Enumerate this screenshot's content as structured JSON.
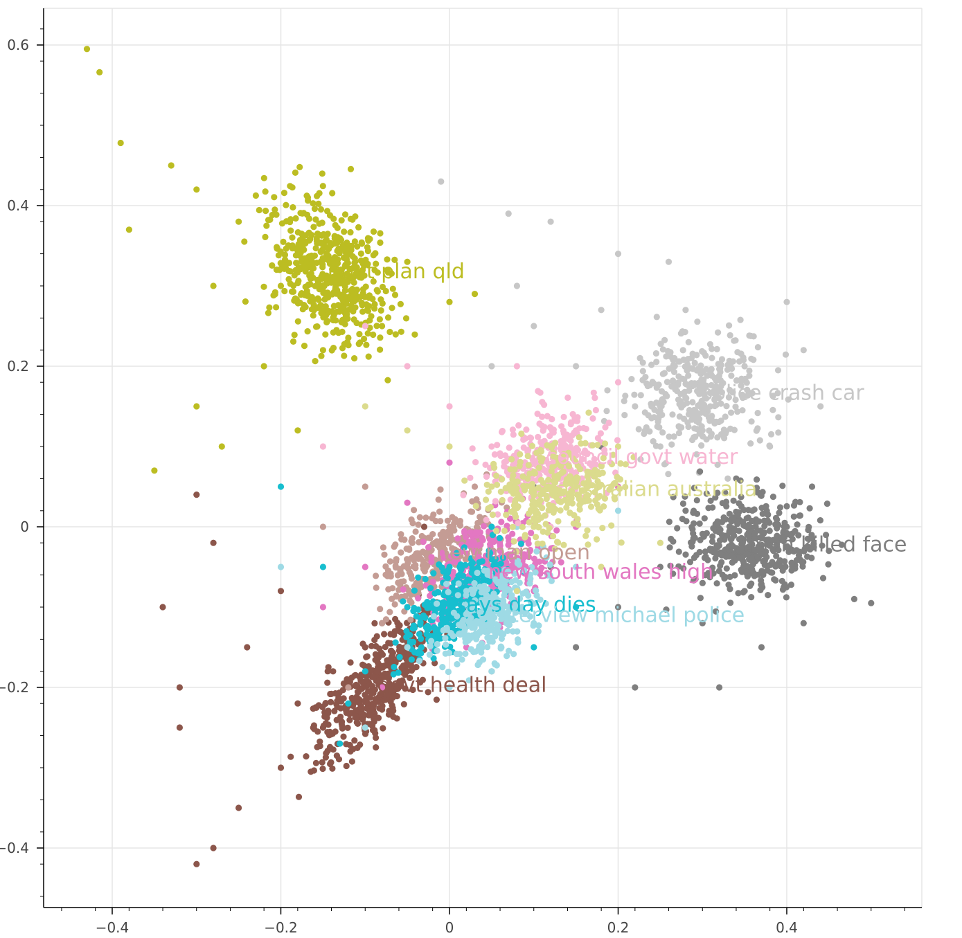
{
  "chart_data": {
    "type": "scatter",
    "title": "",
    "xlabel": "",
    "ylabel": "",
    "xlim": [
      -0.48,
      0.56
    ],
    "ylim": [
      -0.47,
      0.64
    ],
    "x_ticks": [
      -0.4,
      -0.2,
      0,
      0.2,
      0.4
    ],
    "x_tick_labels": [
      "−0.4",
      "−0.2",
      "0",
      "0.2",
      "0.4"
    ],
    "y_ticks": [
      -0.4,
      -0.2,
      0,
      0.2,
      0.4,
      0.6
    ],
    "y_tick_labels": [
      "−0.4",
      "−0.2",
      "0",
      "0.2",
      "0.4",
      "0.6"
    ],
    "grid": true,
    "legend": "none",
    "series": [
      {
        "label": "govt plan qld",
        "color": "#bcbd22",
        "centroid": [
          -0.144,
          0.318
        ],
        "samples": [
          [
            -0.43,
            0.595
          ],
          [
            -0.415,
            0.566
          ],
          [
            -0.39,
            0.478
          ],
          [
            -0.38,
            0.37
          ],
          [
            -0.33,
            0.45
          ],
          [
            -0.3,
            0.42
          ],
          [
            -0.25,
            0.38
          ],
          [
            -0.28,
            0.3
          ],
          [
            -0.2,
            0.3
          ],
          [
            -0.12,
            0.35
          ],
          [
            -0.05,
            0.33
          ],
          [
            -0.22,
            0.2
          ],
          [
            -0.15,
            0.22
          ],
          [
            -0.08,
            0.25
          ],
          [
            0.0,
            0.28
          ],
          [
            -0.27,
            0.1
          ],
          [
            -0.3,
            0.15
          ],
          [
            -0.18,
            0.12
          ],
          [
            0.03,
            0.29
          ],
          [
            -0.35,
            0.07
          ]
        ]
      },
      {
        "label": "police crash car",
        "color": "#c7c7c7",
        "centroid": [
          0.297,
          0.167
        ],
        "samples": [
          [
            -0.01,
            0.43
          ],
          [
            0.07,
            0.39
          ],
          [
            0.12,
            0.38
          ],
          [
            0.2,
            0.34
          ],
          [
            0.26,
            0.33
          ],
          [
            0.28,
            0.27
          ],
          [
            0.35,
            0.2
          ],
          [
            0.4,
            0.28
          ],
          [
            0.42,
            0.22
          ],
          [
            0.3,
            0.12
          ],
          [
            0.22,
            0.15
          ],
          [
            0.15,
            0.2
          ],
          [
            0.1,
            0.25
          ],
          [
            0.05,
            0.2
          ],
          [
            0.44,
            0.15
          ],
          [
            0.33,
            0.06
          ],
          [
            0.38,
            0.1
          ],
          [
            0.25,
            0.1
          ],
          [
            0.18,
            0.27
          ],
          [
            0.08,
            0.3
          ]
        ]
      },
      {
        "label": "man killed face",
        "color": "#7f7f7f",
        "centroid": [
          0.354,
          -0.022
        ],
        "samples": [
          [
            0.5,
            -0.095
          ],
          [
            0.48,
            -0.09
          ],
          [
            0.45,
            -0.03
          ],
          [
            0.43,
            0.05
          ],
          [
            0.4,
            0.0
          ],
          [
            0.35,
            -0.08
          ],
          [
            0.3,
            -0.12
          ],
          [
            0.25,
            -0.05
          ],
          [
            0.2,
            -0.1
          ],
          [
            0.15,
            -0.15
          ],
          [
            0.1,
            0.05
          ],
          [
            0.12,
            -0.05
          ],
          [
            0.18,
            0.1
          ],
          [
            0.28,
            0.02
          ],
          [
            0.34,
            0.06
          ],
          [
            0.37,
            -0.15
          ],
          [
            0.22,
            -0.2
          ],
          [
            0.05,
            -0.18
          ],
          [
            0.32,
            -0.2
          ],
          [
            0.42,
            -0.12
          ]
        ]
      },
      {
        "label": "govt health deal",
        "color": "#8c564b",
        "centroid": [
          -0.086,
          -0.197
        ],
        "samples": [
          [
            -0.3,
            -0.42
          ],
          [
            -0.28,
            -0.4
          ],
          [
            -0.25,
            -0.35
          ],
          [
            -0.2,
            -0.3
          ],
          [
            -0.15,
            -0.25
          ],
          [
            -0.12,
            -0.2
          ],
          [
            -0.1,
            -0.15
          ],
          [
            -0.08,
            -0.12
          ],
          [
            -0.32,
            -0.25
          ],
          [
            -0.34,
            -0.1
          ],
          [
            -0.28,
            -0.02
          ],
          [
            -0.3,
            0.04
          ],
          [
            -0.2,
            -0.08
          ],
          [
            -0.18,
            -0.22
          ],
          [
            -0.05,
            -0.18
          ],
          [
            0.02,
            -0.1
          ],
          [
            0.05,
            -0.05
          ],
          [
            -0.03,
            0.0
          ],
          [
            -0.32,
            -0.2
          ],
          [
            -0.24,
            -0.15
          ]
        ]
      },
      {
        "label": "new man open",
        "color": "#c49c94",
        "centroid": [
          -0.016,
          -0.032
        ],
        "samples": [
          [
            -0.12,
            -0.2
          ],
          [
            -0.08,
            -0.12
          ],
          [
            -0.05,
            -0.05
          ],
          [
            0.0,
            0.0
          ],
          [
            0.03,
            0.05
          ],
          [
            -0.1,
            0.05
          ],
          [
            -0.15,
            0.0
          ],
          [
            0.05,
            -0.08
          ],
          [
            0.08,
            -0.03
          ],
          [
            -0.02,
            -0.1
          ]
        ]
      },
      {
        "label": "new south wales high",
        "color": "#e377c2",
        "centroid": [
          0.046,
          -0.056
        ],
        "samples": [
          [
            -0.1,
            -0.05
          ],
          [
            -0.05,
            0.03
          ],
          [
            0.0,
            0.08
          ],
          [
            0.05,
            -0.1
          ],
          [
            0.1,
            -0.08
          ],
          [
            -0.15,
            -0.1
          ],
          [
            0.15,
            0.0
          ],
          [
            0.02,
            -0.15
          ],
          [
            -0.08,
            -0.2
          ],
          [
            0.2,
            0.05
          ]
        ]
      },
      {
        "label": "says day dies",
        "color": "#17becf",
        "centroid": [
          0.007,
          -0.097
        ],
        "samples": [
          [
            -0.13,
            -0.27
          ],
          [
            -0.12,
            -0.22
          ],
          [
            -0.1,
            -0.18
          ],
          [
            -0.05,
            -0.1
          ],
          [
            0.0,
            -0.05
          ],
          [
            0.05,
            0.0
          ],
          [
            -0.2,
            0.05
          ],
          [
            -0.15,
            -0.05
          ],
          [
            0.1,
            -0.15
          ],
          [
            0.15,
            -0.1
          ]
        ]
      },
      {
        "label": "interview michael police",
        "color": "#9edae5",
        "centroid": [
          0.05,
          -0.11
        ],
        "samples": [
          [
            -0.05,
            -0.15
          ],
          [
            0.0,
            -0.2
          ],
          [
            0.05,
            -0.18
          ],
          [
            0.1,
            -0.12
          ],
          [
            0.15,
            -0.05
          ],
          [
            -0.1,
            -0.25
          ],
          [
            0.02,
            -0.08
          ],
          [
            0.08,
            0.0
          ],
          [
            -0.2,
            -0.05
          ],
          [
            0.2,
            0.02
          ]
        ]
      },
      {
        "label": "council govt water",
        "color": "#f7b6d2",
        "centroid": [
          0.114,
          0.087
        ],
        "samples": [
          [
            -0.1,
            0.25
          ],
          [
            -0.05,
            0.2
          ],
          [
            0.0,
            0.15
          ],
          [
            0.05,
            0.1
          ],
          [
            0.1,
            0.08
          ],
          [
            0.15,
            0.12
          ],
          [
            0.2,
            0.18
          ],
          [
            -0.15,
            0.1
          ],
          [
            0.08,
            0.2
          ],
          [
            0.12,
            0.0
          ]
        ]
      },
      {
        "label": "australian australia",
        "color": "#dbdb8d",
        "centroid": [
          0.127,
          0.047
        ],
        "samples": [
          [
            -0.1,
            0.15
          ],
          [
            -0.05,
            0.12
          ],
          [
            0.0,
            0.1
          ],
          [
            0.05,
            0.05
          ],
          [
            0.1,
            0.0
          ],
          [
            0.15,
            0.05
          ],
          [
            0.2,
            0.1
          ],
          [
            0.25,
            -0.02
          ],
          [
            0.08,
            -0.08
          ],
          [
            0.18,
            -0.05
          ]
        ]
      }
    ],
    "overlay_labels": [
      "govt plan qld",
      "police crash car",
      "council govt water",
      "australian australia",
      "man killed face",
      "new man open",
      "new south wales high",
      "interview michael police",
      "says day dies",
      "govt health deal"
    ]
  }
}
